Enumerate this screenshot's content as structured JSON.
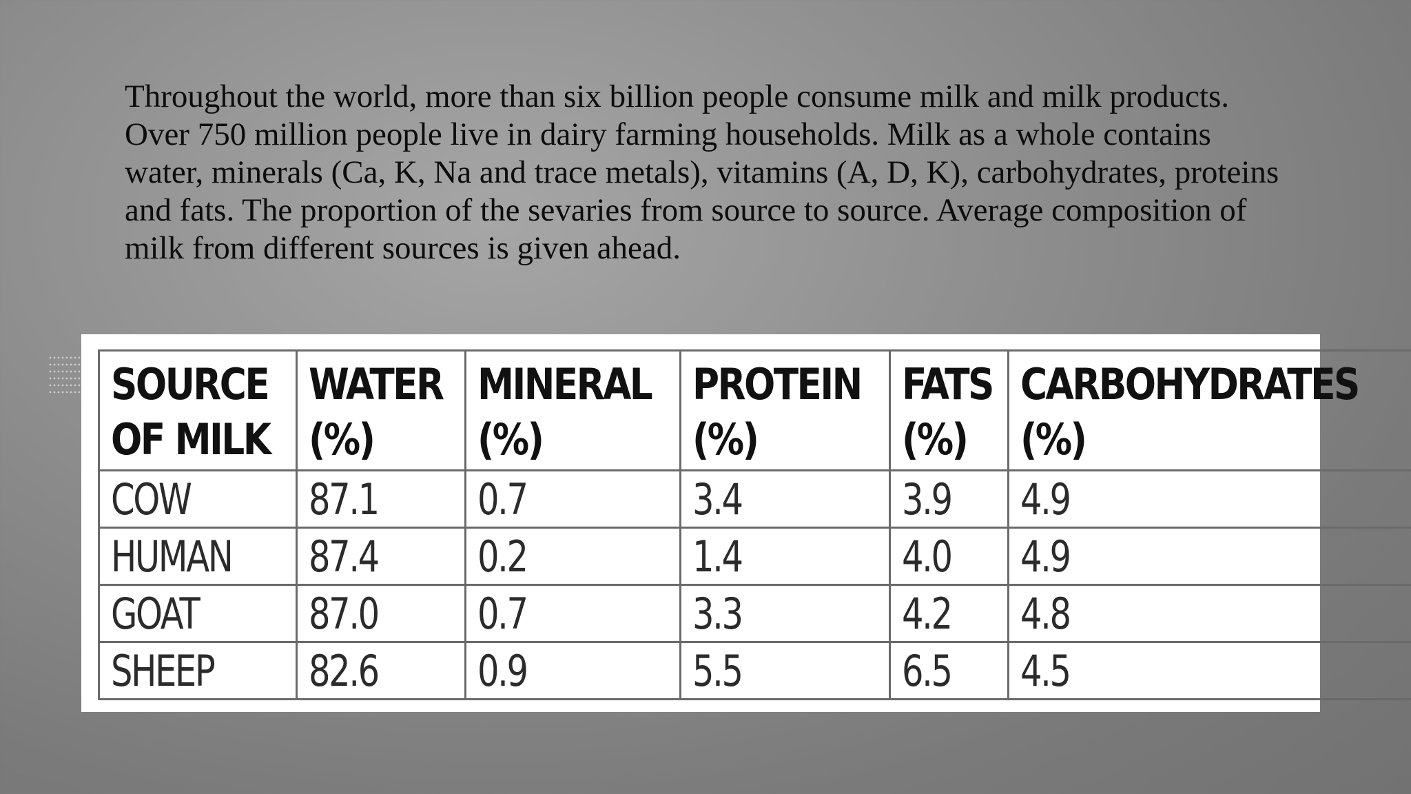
{
  "intro_text": "Throughout the world, more than six billion people consume milk and milk products. Over 750 million people live in dairy farming households. Milk as a whole contains water, minerals (Ca, K, Na and trace metals), vitamins (A, D, K), carbohydrates, proteins and fats. The proportion of the sevaries from source to source. Average composition of milk from different sources is given ahead.",
  "table": {
    "headers": [
      [
        "SOURCE",
        "OF MILK"
      ],
      [
        "WATER",
        "(%)"
      ],
      [
        "MINERAL",
        "(%)"
      ],
      [
        "PROTEIN",
        "(%)"
      ],
      [
        "FATS",
        "(%)"
      ],
      [
        "CARBOHYDRATES",
        "(%)"
      ]
    ],
    "rows": [
      [
        "COW",
        "87.1",
        "0.7",
        "3.4",
        "3.9",
        "4.9"
      ],
      [
        "HUMAN",
        "87.4",
        "0.2",
        "1.4",
        "4.0",
        "4.9"
      ],
      [
        "GOAT",
        "87.0",
        "0.7",
        "3.3",
        "4.2",
        "4.8"
      ],
      [
        "SHEEP",
        "82.6",
        "0.9",
        "5.5",
        "6.5",
        "4.5"
      ]
    ]
  }
}
